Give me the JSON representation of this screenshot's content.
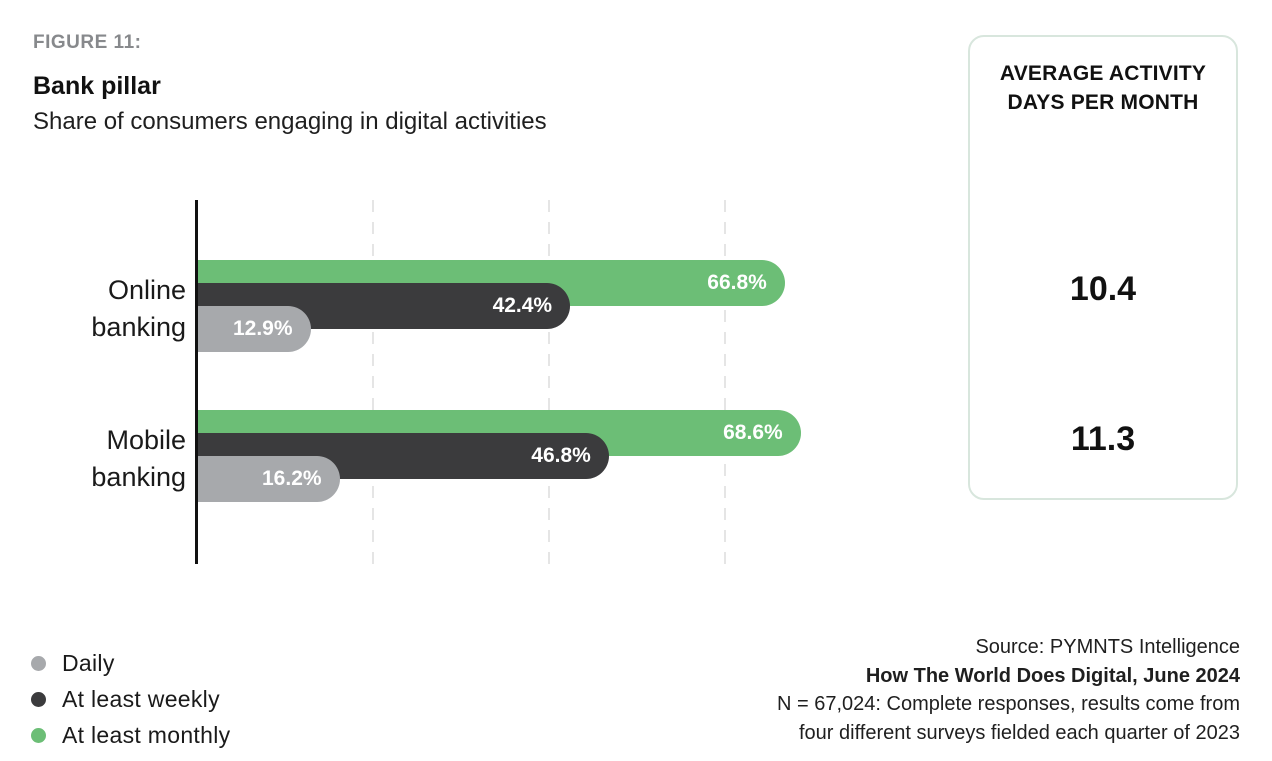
{
  "figure": {
    "label": "FIGURE 11:",
    "title": "Bank pillar",
    "subtitle": "Share of consumers engaging in digital activities"
  },
  "chart_data": {
    "type": "bar",
    "orientation": "horizontal",
    "title": "Bank pillar",
    "subtitle": "Share of consumers engaging in digital activities",
    "categories": [
      "Online banking",
      "Mobile banking"
    ],
    "series": [
      {
        "name": "Daily",
        "color": "#A7A9AC",
        "values": [
          12.9,
          16.2
        ],
        "labels": [
          "12.9%",
          "16.2%"
        ]
      },
      {
        "name": "At least weekly",
        "color": "#3B3B3D",
        "values": [
          42.4,
          46.8
        ],
        "labels": [
          "42.4%",
          "46.8%"
        ]
      },
      {
        "name": "At least monthly",
        "color": "#6CBE76",
        "values": [
          66.8,
          68.6
        ],
        "labels": [
          "66.8%",
          "68.6%"
        ]
      }
    ],
    "x_axis": {
      "min": 0,
      "max_visible": 70,
      "unit": "%",
      "gridlines_pct": [
        20,
        40,
        60
      ],
      "tick_labels_visible": false,
      "grid_style": "dashed"
    },
    "value_label_color": "#FFFFFF",
    "legend_position": "bottom-left"
  },
  "side_panel": {
    "title_lines": [
      "AVERAGE ACTIVITY",
      "DAYS PER MONTH"
    ],
    "values": [
      "10.4",
      "11.3"
    ],
    "border_color": "#D8E6DD"
  },
  "legend": {
    "items": [
      {
        "label": "Daily",
        "color": "#A7A9AC"
      },
      {
        "label": "At least weekly",
        "color": "#3B3B3D"
      },
      {
        "label": "At least monthly",
        "color": "#6CBE76"
      }
    ]
  },
  "source": {
    "lines": [
      {
        "text": "Source: PYMNTS Intelligence",
        "bold": false
      },
      {
        "text": "How The World Does Digital, June 2024",
        "bold": true
      },
      {
        "text": "N = 67,024: Complete responses, results come from",
        "bold": false
      },
      {
        "text": "four different surveys fielded each quarter of 2023",
        "bold": false
      }
    ]
  }
}
